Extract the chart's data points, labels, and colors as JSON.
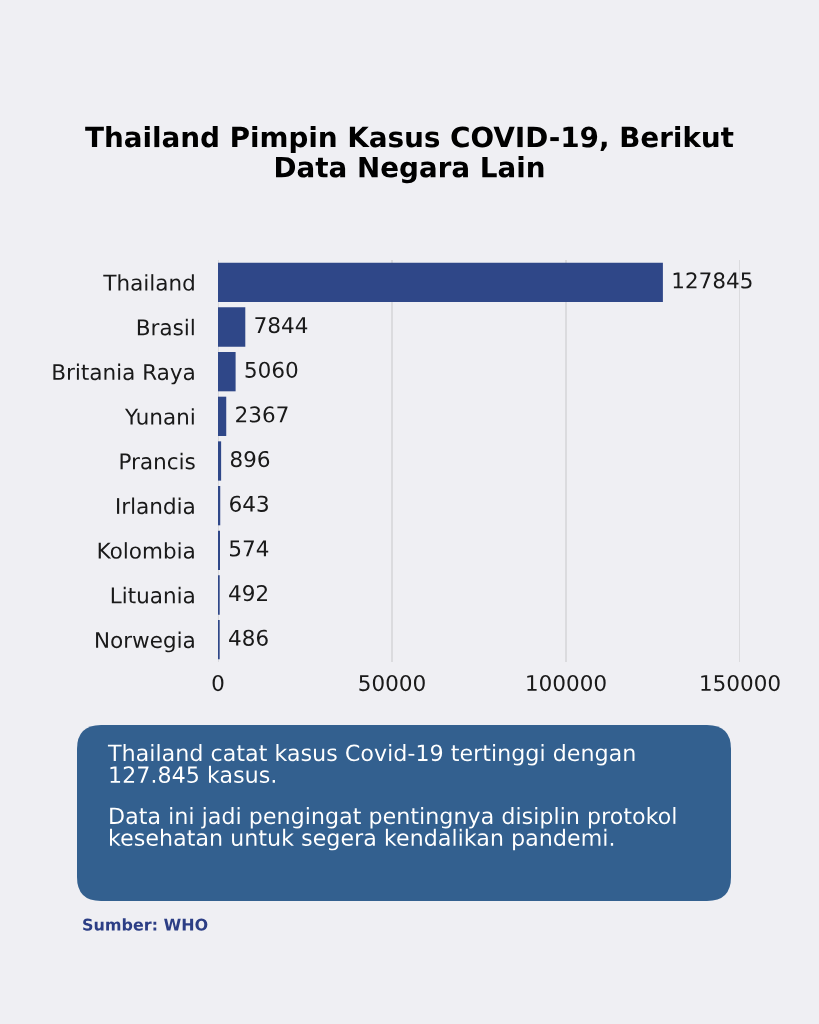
{
  "chart_data": {
    "type": "bar",
    "orientation": "horizontal",
    "title": "Thailand Pimpin Kasus COVID-19, Berikut Data Negara Lain",
    "categories": [
      "Thailand",
      "Brasil",
      "Britania Raya",
      "Yunani",
      "Prancis",
      "Irlandia",
      "Kolombia",
      "Lituania",
      "Norwegia"
    ],
    "values": [
      127845,
      7844,
      5060,
      2367,
      896,
      643,
      574,
      492,
      486
    ],
    "color": "#2f4788",
    "xlim": [
      0,
      150000
    ],
    "xticks": [
      0,
      50000,
      100000,
      150000
    ],
    "grid": "x",
    "data_labels": true,
    "annotations": [
      "Thailand catat kasus Covid-19 tertinggi dengan 127.845 kasus.",
      "Data ini jadi pengingat pentingnya disiplin protokol kesehatan untuk segera kendalikan pandemi.",
      "Sumber: WHO"
    ]
  }
}
